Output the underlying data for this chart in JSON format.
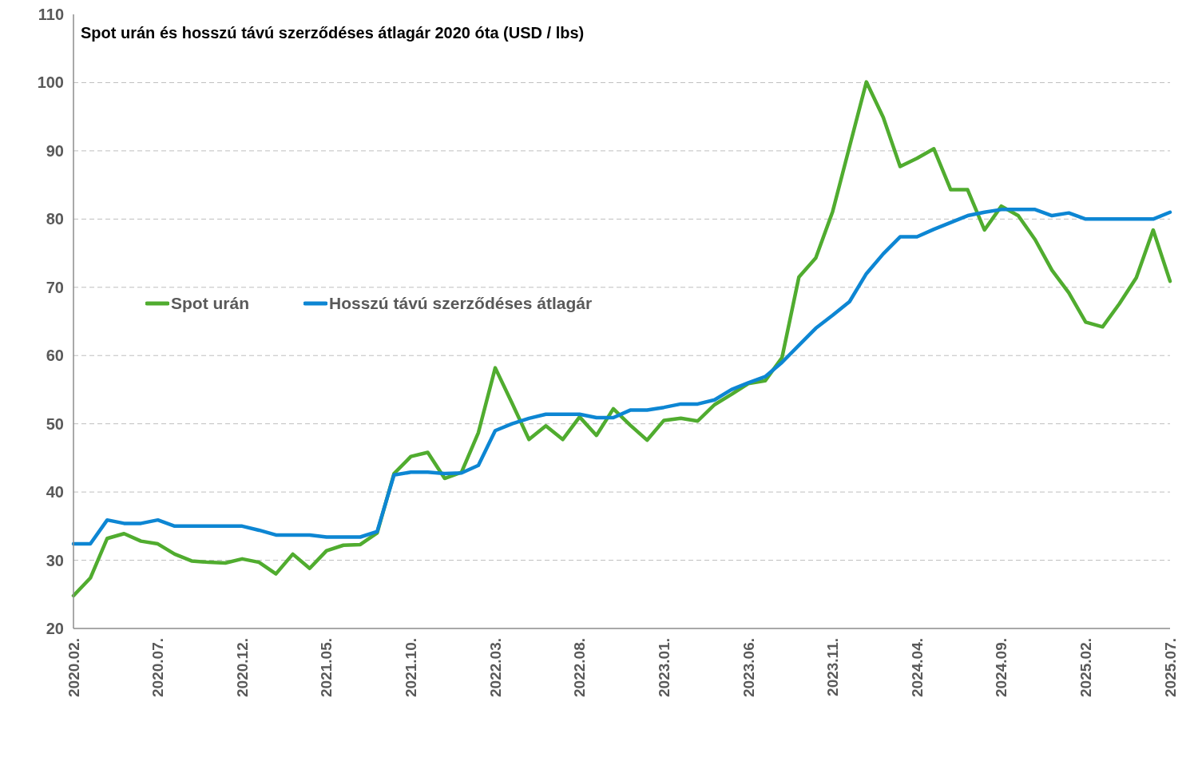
{
  "chart_data": {
    "type": "line",
    "title": "Spot urán és hosszú távú szerződéses átlagár 2020 óta (USD / lbs)",
    "categories": [
      "2020.02.",
      null,
      null,
      null,
      null,
      "2020.07.",
      null,
      null,
      null,
      null,
      "2020.12.",
      null,
      null,
      null,
      null,
      "2021.05.",
      null,
      null,
      null,
      null,
      "2021.10.",
      null,
      null,
      null,
      null,
      "2022.03.",
      null,
      null,
      null,
      null,
      "2022.08.",
      null,
      null,
      null,
      null,
      "2023.01.",
      null,
      null,
      null,
      null,
      "2023.06.",
      null,
      null,
      null,
      null,
      "2023.11.",
      null,
      null,
      null,
      null,
      "2024.04.",
      null,
      null,
      null,
      null,
      "2024.09.",
      null,
      null,
      null,
      null,
      "2025.02.",
      null,
      null,
      null,
      null,
      "2025.07."
    ],
    "series": [
      {
        "name": "Spot urán",
        "color": "#50ac2f",
        "values": [
          24.8,
          27.4,
          33.2,
          33.9,
          32.8,
          32.4,
          30.9,
          29.9,
          29.7,
          29.6,
          30.2,
          29.7,
          28.0,
          30.9,
          28.8,
          31.4,
          32.2,
          32.3,
          34.0,
          42.7,
          45.2,
          45.8,
          42.0,
          42.9,
          48.7,
          58.2,
          53.0,
          47.7,
          49.7,
          47.7,
          51.0,
          48.3,
          52.2,
          49.8,
          47.6,
          50.5,
          50.8,
          50.4,
          52.8,
          54.3,
          55.9,
          56.3,
          59.7,
          71.5,
          74.3,
          81.1,
          90.6,
          100.1,
          94.9,
          87.7,
          88.9,
          90.3,
          84.3,
          84.3,
          78.4,
          81.9,
          80.5,
          77.0,
          72.5,
          69.2,
          64.9,
          64.2,
          67.6,
          71.4,
          78.4,
          70.9
        ]
      },
      {
        "name": "Hosszú távú szerződéses átlagár",
        "color": "#0d86d3",
        "values": [
          32.4,
          32.4,
          35.9,
          35.4,
          35.4,
          35.9,
          35.0,
          35.0,
          35.0,
          35.0,
          35.0,
          34.4,
          33.7,
          33.7,
          33.7,
          33.4,
          33.4,
          33.4,
          34.2,
          42.5,
          42.9,
          42.9,
          42.7,
          42.8,
          43.9,
          49.0,
          50.0,
          50.8,
          51.4,
          51.4,
          51.4,
          50.9,
          50.9,
          52.0,
          52.0,
          52.4,
          52.9,
          52.9,
          53.5,
          55.0,
          56.0,
          56.9,
          59.0,
          61.5,
          64.0,
          65.9,
          67.9,
          72.0,
          74.9,
          77.4,
          77.4,
          78.5,
          79.5,
          80.5,
          81.0,
          81.4,
          81.4,
          81.4,
          80.5,
          80.9,
          80.0,
          80.0,
          80.0,
          80.0,
          80.0,
          81.0
        ]
      }
    ],
    "ylim": [
      20,
      110
    ],
    "yticks": [
      20,
      30,
      40,
      50,
      60,
      70,
      80,
      90,
      100,
      110
    ],
    "grid": "y",
    "legend": "left",
    "line_style": "solid"
  }
}
